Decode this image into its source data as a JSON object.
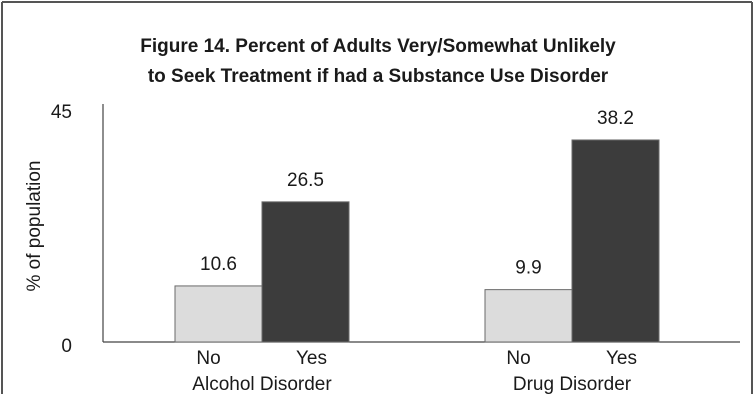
{
  "chart_data": {
    "type": "bar",
    "title": "Figure 14. Percent of Adults Very/Somewhat Unlikely to Seek Treatment if had a Substance Use Disorder",
    "title_lines": [
      "Figure 14. Percent of Adults Very/Somewhat Unlikely",
      "to Seek Treatment if had a Substance Use Disorder"
    ],
    "ylabel": "% of population",
    "xlabel": "",
    "ylim": [
      0,
      45
    ],
    "y_ticks": [
      "0",
      "45"
    ],
    "grid": false,
    "groups": [
      {
        "label": "Alcohol Disorder",
        "bars": [
          {
            "category": "No",
            "value": 10.6,
            "value_label": "10.6",
            "color": "#dcdcdc"
          },
          {
            "category": "Yes",
            "value": 26.5,
            "value_label": "26.5",
            "color": "#3c3c3c"
          }
        ]
      },
      {
        "label": "Drug Disorder",
        "bars": [
          {
            "category": "No",
            "value": 9.9,
            "value_label": "9.9",
            "color": "#dcdcdc"
          },
          {
            "category": "Yes",
            "value": 38.2,
            "value_label": "38.2",
            "color": "#3c3c3c"
          }
        ]
      }
    ]
  }
}
